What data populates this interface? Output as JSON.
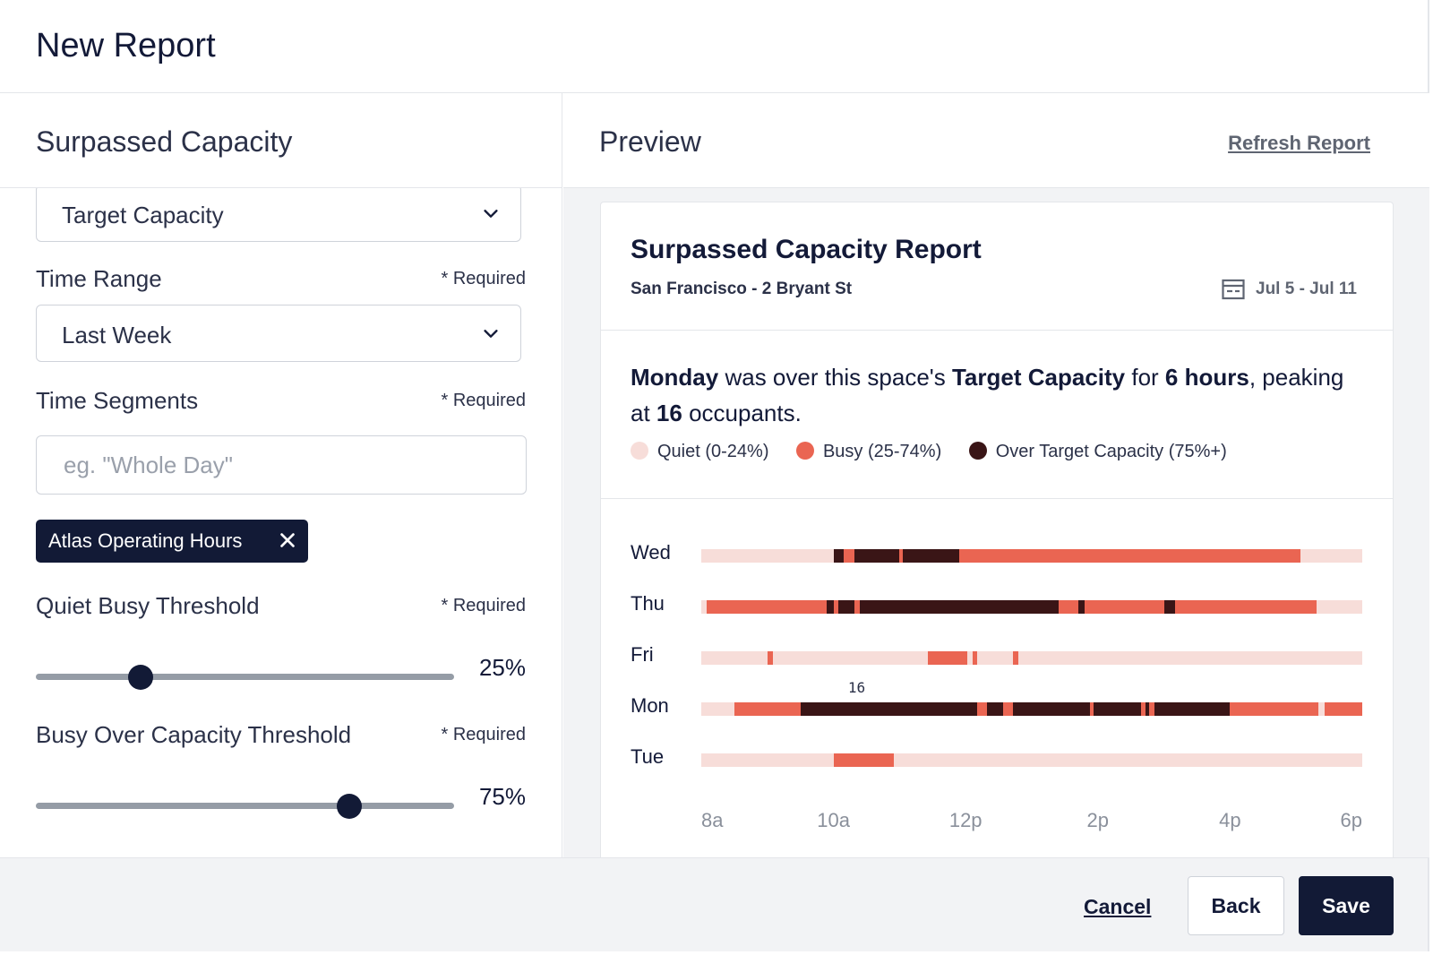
{
  "modal": {
    "title": "New Report"
  },
  "form": {
    "title": "Surpassed Capacity",
    "metric_select": {
      "value": "Target Capacity"
    },
    "time_range": {
      "label": "Time Range",
      "required": "* Required",
      "value": "Last Week"
    },
    "time_segments": {
      "label": "Time Segments",
      "required": "* Required",
      "placeholder": "eg. \"Whole Day\"",
      "chips": [
        {
          "label": "Atlas Operating Hours"
        }
      ]
    },
    "quiet_busy_threshold": {
      "label": "Quiet Busy Threshold",
      "required": "* Required",
      "value": 25,
      "value_label": "25%"
    },
    "busy_over_threshold": {
      "label": "Busy Over Capacity Threshold",
      "required": "* Required",
      "value": 75,
      "value_label": "75%"
    }
  },
  "preview": {
    "title": "Preview",
    "refresh_label": "Refresh Report",
    "report": {
      "title": "Surpassed Capacity Report",
      "location": "San Francisco - 2 Bryant St",
      "date_range": "Jul 5  -  Jul 11",
      "summary": {
        "day": "Monday",
        "t1": " was over this space's ",
        "metric": "Target Capacity",
        "t2": " for ",
        "duration": "6 hours",
        "t3": ", peaking at ",
        "peak": "16",
        "t4": " occupants."
      },
      "legend": [
        {
          "label": "Quiet (0-24%)",
          "color": "#f7ddd9"
        },
        {
          "label": "Busy (25-74%)",
          "color": "#ea6552"
        },
        {
          "label": "Over Target Capacity (75%+)",
          "color": "#3a1516"
        }
      ]
    }
  },
  "chart_data": {
    "type": "timeline",
    "x_range": [
      8,
      18
    ],
    "x_ticks": [
      "8a",
      "10a",
      "12p",
      "2p",
      "4p",
      "6p"
    ],
    "colors": {
      "quiet": "#f7ddd9",
      "busy": "#ea6552",
      "over": "#3a1516"
    },
    "rows": [
      {
        "day": "Wed",
        "segments": [
          [
            8,
            10,
            "quiet"
          ],
          [
            10,
            10.15,
            "over"
          ],
          [
            10.15,
            10.32,
            "busy"
          ],
          [
            10.32,
            11,
            "over"
          ],
          [
            11,
            11.05,
            "busy"
          ],
          [
            11.05,
            11.9,
            "over"
          ],
          [
            11.9,
            17.06,
            "busy"
          ],
          [
            17.06,
            18,
            "quiet"
          ]
        ]
      },
      {
        "day": "Thu",
        "segments": [
          [
            8,
            8.08,
            "quiet"
          ],
          [
            8.08,
            9.9,
            "busy"
          ],
          [
            9.9,
            10,
            "over"
          ],
          [
            10,
            10.07,
            "busy"
          ],
          [
            10.07,
            10.32,
            "over"
          ],
          [
            10.32,
            10.4,
            "busy"
          ],
          [
            10.4,
            13.4,
            "over"
          ],
          [
            13.4,
            13.7,
            "busy"
          ],
          [
            13.7,
            13.8,
            "over"
          ],
          [
            13.8,
            15,
            "busy"
          ],
          [
            15,
            15.17,
            "over"
          ],
          [
            15.17,
            17.31,
            "busy"
          ],
          [
            17.31,
            18,
            "quiet"
          ]
        ]
      },
      {
        "day": "Fri",
        "segments": [
          [
            8,
            9,
            "quiet"
          ],
          [
            9,
            9.08,
            "busy"
          ],
          [
            9.08,
            11.43,
            "quiet"
          ],
          [
            11.43,
            12.02,
            "busy"
          ],
          [
            12.02,
            12.1,
            "quiet"
          ],
          [
            12.1,
            12.18,
            "busy"
          ],
          [
            12.18,
            12.72,
            "quiet"
          ],
          [
            12.72,
            12.8,
            "busy"
          ],
          [
            12.8,
            18,
            "quiet"
          ]
        ]
      },
      {
        "day": "Mon",
        "peak_label": "16",
        "peak_x": 10.22,
        "segments": [
          [
            8,
            8.5,
            "quiet"
          ],
          [
            8.5,
            9.5,
            "busy"
          ],
          [
            9.5,
            12.18,
            "over"
          ],
          [
            12.18,
            12.32,
            "busy"
          ],
          [
            12.32,
            12.57,
            "over"
          ],
          [
            12.57,
            12.71,
            "busy"
          ],
          [
            12.71,
            13.88,
            "over"
          ],
          [
            13.88,
            13.94,
            "busy"
          ],
          [
            13.94,
            14.65,
            "over"
          ],
          [
            14.65,
            14.72,
            "busy"
          ],
          [
            14.72,
            14.78,
            "over"
          ],
          [
            14.78,
            14.85,
            "busy"
          ],
          [
            14.85,
            15.99,
            "over"
          ],
          [
            15.99,
            17.34,
            "busy"
          ],
          [
            17.34,
            17.43,
            "quiet"
          ],
          [
            17.43,
            18,
            "busy"
          ]
        ]
      },
      {
        "day": "Tue",
        "segments": [
          [
            8,
            10,
            "quiet"
          ],
          [
            10,
            10.92,
            "busy"
          ],
          [
            10.92,
            18,
            "quiet"
          ]
        ]
      }
    ]
  },
  "footer": {
    "cancel_label": "Cancel",
    "back_label": "Back",
    "save_label": "Save"
  }
}
